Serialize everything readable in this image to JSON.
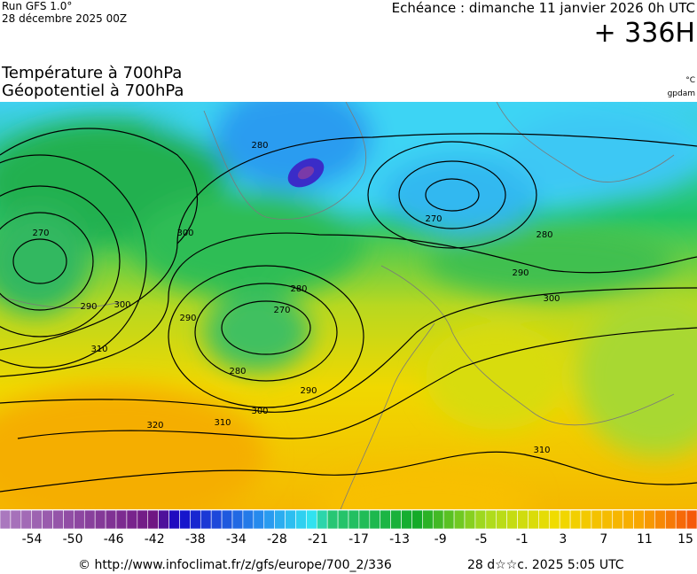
{
  "header": {
    "run": "Run GFS 1.0°",
    "run_date": "28 décembre 2025 00Z",
    "forecast": "Echéance : dimanche 11 janvier 2026 0h UTC",
    "lead": "+ 336H"
  },
  "variables": [
    "Température à 700hPa",
    "Géopotentiel à 700hPa"
  ],
  "units": [
    "°C",
    "gpdam"
  ],
  "contour_labels": [
    "280",
    "270",
    "280",
    "290",
    "300",
    "270",
    "300",
    "290",
    "300",
    "280",
    "270",
    "290",
    "310",
    "280",
    "290",
    "300",
    "310",
    "320",
    "310"
  ],
  "legend": {
    "labels": [
      "-54",
      "-50",
      "-46",
      "-42",
      "-38",
      "-34",
      "-28",
      "-21",
      "-17",
      "-13",
      "-9",
      "-5",
      "-1",
      "3",
      "7",
      "11",
      "15"
    ]
  },
  "footer": {
    "source": "© http://www.infoclimat.fr/z/gfs/europe/700_2/336",
    "generated": "28 d☆☆c. 2025  5:05 UTC"
  }
}
